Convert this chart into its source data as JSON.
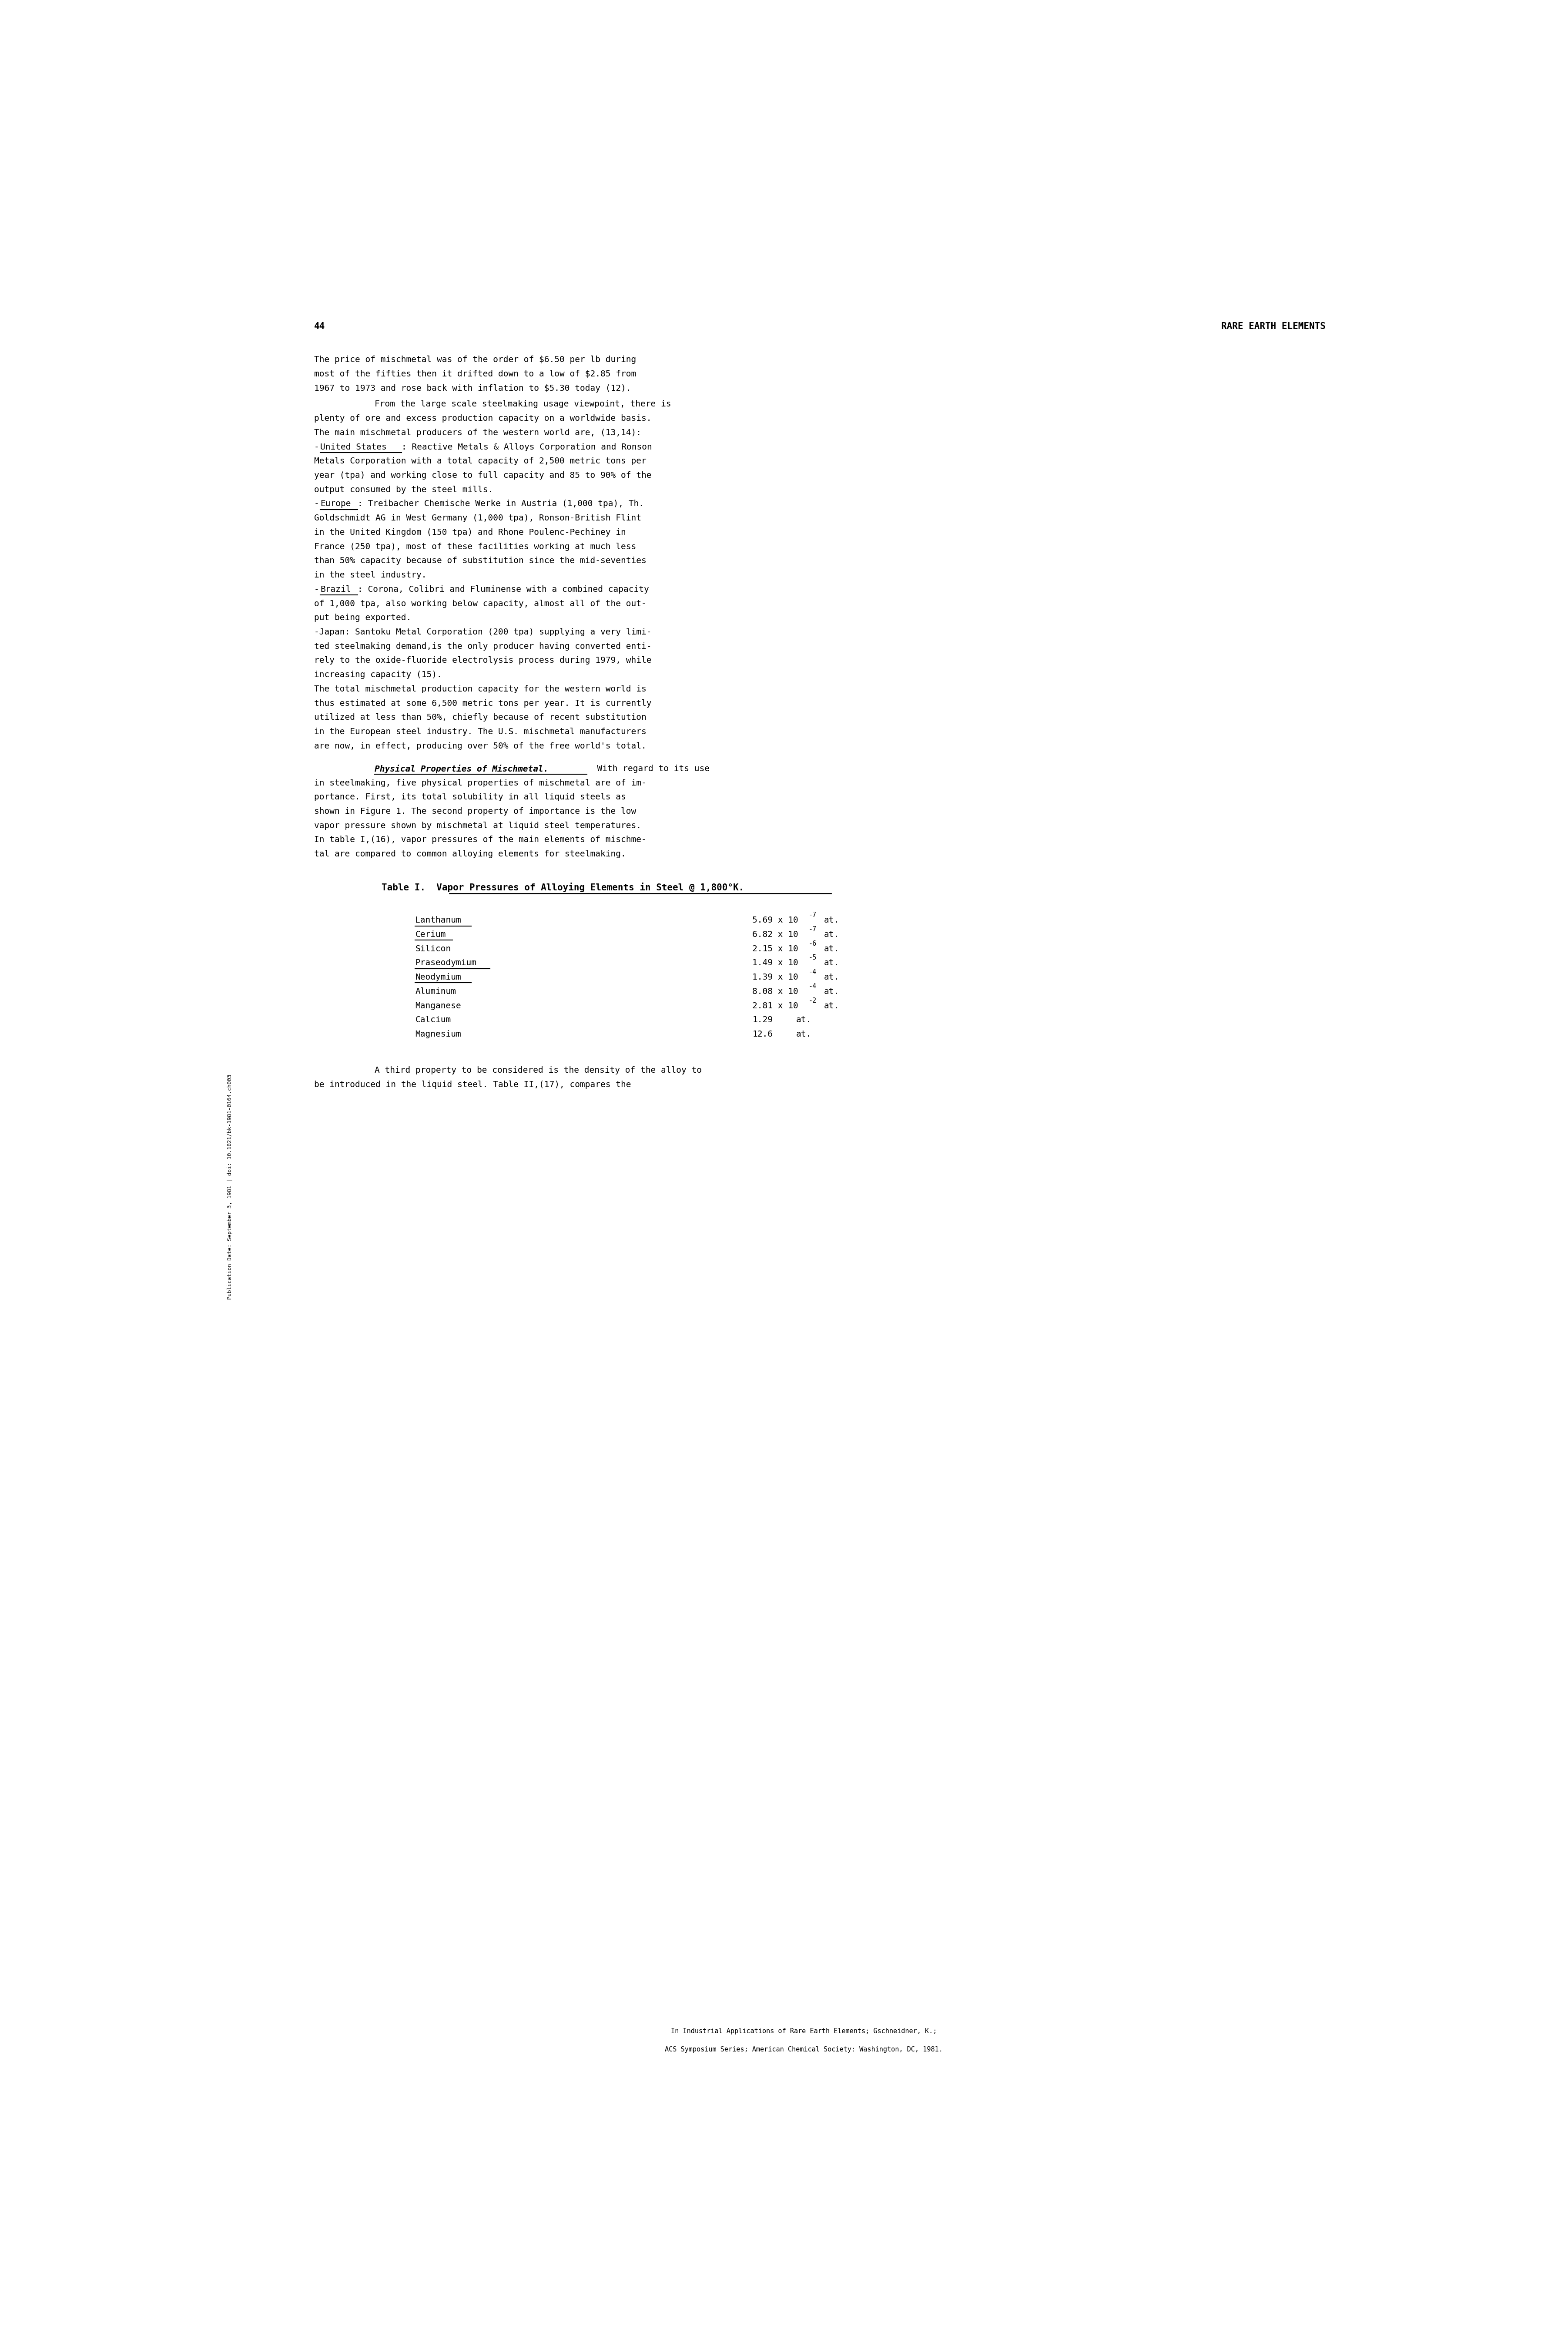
{
  "page_number": "44",
  "header_right": "RARE EARTH ELEMENTS",
  "sidebar_text": "Publication Date: September 3, 1981 | doi: 10.1021/bk-1981-0164.ch003",
  "para1_lines": [
    "The price of mischmetal was of the order of $6.50 per lb during",
    "most of the fifties then it drifted down to a low of $2.85 from",
    "1967 to 1973 and rose back with inflation to $5.30 today (12)."
  ],
  "para2_first_line": "From the large scale steelmaking usage viewpoint, there is",
  "para2_lines": [
    "plenty of ore and excess production capacity on a worldwide basis.",
    "The main mischmetal producers of the western world are, (13,14):",
    {
      "type": "underline_prefix",
      "prefix": "-",
      "underlined": "United States",
      "rest": ": Reactive Metals & Alloys Corporation and Ronson"
    },
    "Metals Corporation with a total capacity of 2,500 metric tons per",
    "year (tpa) and working close to full capacity and 85 to 90% of the",
    "output consumed by the steel mills.",
    {
      "type": "underline_prefix",
      "prefix": "-",
      "underlined": "Europe",
      "rest": ": Treibacher Chemische Werke in Austria (1,000 tpa), Th."
    },
    "Goldschmidt AG in West Germany (1,000 tpa), Ronson-British Flint",
    "in the United Kingdom (150 tpa) and Rhone Poulenc-Pechiney in",
    "France (250 tpa), most of these facilities working at much less",
    "than 50% capacity because of substitution since the mid-seventies",
    "in the steel industry.",
    {
      "type": "underline_prefix",
      "prefix": "-",
      "underlined": "Brazil",
      "rest": ": Corona, Colibri and Fluminense with a combined capacity"
    },
    "of 1,000 tpa, also working below capacity, almost all of the out-",
    "put being exported.",
    "-Japan: Santoku Metal Corporation (200 tpa) supplying a very limi-",
    "ted steelmaking demand,is the only producer having converted enti-",
    "rely to the oxide-fluoride electrolysis process during 1979, while",
    "increasing capacity (15).",
    "The total mischmetal production capacity for the western world is",
    "thus estimated at some 6,500 metric tons per year. It is currently",
    "utilized at less than 50%, chiefly because of recent substitution",
    "in the European steel industry. The U.S. mischmetal manufacturers",
    "are now, in effect, producing over 50% of the free world's total."
  ],
  "para3_first_bold": "Physical Properties of Mischmetal.",
  "para3_first_rest": "  With regard to its use",
  "para3_lines": [
    "in steelmaking, five physical properties of mischmetal are of im-",
    "portance. First, its total solubility in all liquid steels as",
    "shown in Figure 1. The second property of importance is the low",
    "vapor pressure shown by mischmetal at liquid steel temperatures.",
    "In table I,(16), vapor pressures of the main elements of mischme-",
    "tal are compared to common alloying elements for steelmaking."
  ],
  "table_title_prefix": "Table I.  ",
  "table_title_underlined": "Vapor Pressures of Alloying Elements in Steel @ 1,800°K.",
  "table_data": [
    {
      "element": "Lanthanum",
      "underline": true,
      "value": "5.69",
      "exponent": "-7",
      "unit": "at."
    },
    {
      "element": "Cerium",
      "underline": true,
      "value": "6.82",
      "exponent": "-7",
      "unit": "at."
    },
    {
      "element": "Silicon",
      "underline": false,
      "value": "2.15",
      "exponent": "-6",
      "unit": "at."
    },
    {
      "element": "Praseodymium",
      "underline": true,
      "value": "1.49",
      "exponent": "-5",
      "unit": "at."
    },
    {
      "element": "Neodymium",
      "underline": true,
      "value": "1.39",
      "exponent": "-4",
      "unit": "at."
    },
    {
      "element": "Aluminum",
      "underline": false,
      "value": "8.08",
      "exponent": "-4",
      "unit": "at."
    },
    {
      "element": "Manganese",
      "underline": false,
      "value": "2.81",
      "exponent": "-2",
      "unit": "at."
    },
    {
      "element": "Calcium",
      "underline": false,
      "value": "1.29",
      "exponent": "",
      "unit": "at."
    },
    {
      "element": "Magnesium",
      "underline": false,
      "value": "12.6",
      "exponent": "",
      "unit": "at."
    }
  ],
  "footer_first_line": "A third property to be considered is the density of the alloy to",
  "footer_second_line": "be introduced in the liquid steel. Table II,(17), compares the",
  "footer_citation_line1": "In Industrial Applications of Rare Earth Elements; Gschneidner, K.;",
  "footer_citation_line2": "ACS Symposium Series; American Chemical Society: Washington, DC, 1981.",
  "bg_color": "#ffffff",
  "text_color": "#000000",
  "font_size": 14,
  "title_font_size": 15
}
